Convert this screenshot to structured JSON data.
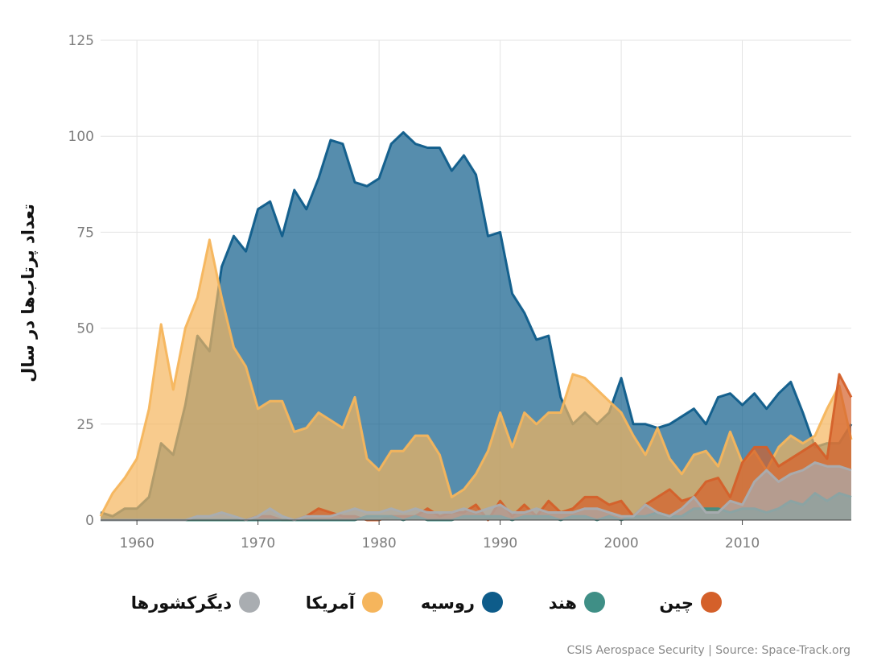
{
  "chart_data": {
    "type": "area",
    "ylabel": "تعداد پرتاب‌ها در سال",
    "xlabel": "",
    "xlim": [
      1957,
      2019
    ],
    "ylim": [
      0,
      125
    ],
    "x_ticks": [
      1960,
      1970,
      1980,
      1990,
      2000,
      2010
    ],
    "y_ticks": [
      0,
      25,
      50,
      75,
      100,
      125
    ],
    "grid": true,
    "legend_position": "bottom",
    "x": [
      1957,
      1958,
      1959,
      1960,
      1961,
      1962,
      1963,
      1964,
      1965,
      1966,
      1967,
      1968,
      1969,
      1970,
      1971,
      1972,
      1973,
      1974,
      1975,
      1976,
      1977,
      1978,
      1979,
      1980,
      1981,
      1982,
      1983,
      1984,
      1985,
      1986,
      1987,
      1988,
      1989,
      1990,
      1991,
      1992,
      1993,
      1994,
      1995,
      1996,
      1997,
      1998,
      1999,
      2000,
      2001,
      2002,
      2003,
      2004,
      2005,
      2006,
      2007,
      2008,
      2009,
      2010,
      2011,
      2012,
      2013,
      2014,
      2015,
      2016,
      2017,
      2018,
      2019
    ],
    "series": [
      {
        "name": "روسیه",
        "color": "#0e5c8a",
        "values": [
          2,
          1,
          3,
          3,
          6,
          20,
          17,
          30,
          48,
          44,
          66,
          74,
          70,
          81,
          83,
          74,
          86,
          81,
          89,
          99,
          98,
          88,
          87,
          89,
          98,
          101,
          98,
          97,
          97,
          91,
          95,
          90,
          74,
          75,
          59,
          54,
          47,
          48,
          32,
          25,
          28,
          25,
          28,
          37,
          25,
          25,
          24,
          25,
          27,
          29,
          25,
          32,
          33,
          30,
          33,
          29,
          33,
          36,
          28,
          19,
          20,
          20,
          25
        ]
      },
      {
        "name": "آمریکا",
        "color": "#f5b55c",
        "values": [
          1,
          7,
          11,
          16,
          29,
          51,
          34,
          50,
          58,
          73,
          58,
          45,
          40,
          29,
          31,
          31,
          23,
          24,
          28,
          26,
          24,
          32,
          16,
          13,
          18,
          18,
          22,
          22,
          17,
          6,
          8,
          12,
          18,
          28,
          19,
          28,
          25,
          28,
          28,
          38,
          37,
          34,
          31,
          28,
          22,
          17,
          24,
          16,
          12,
          17,
          18,
          14,
          23,
          15,
          18,
          13,
          19,
          22,
          20,
          22,
          29,
          35,
          21
        ]
      },
      {
        "name": "چین",
        "color": "#d4602a",
        "values": [
          0,
          0,
          0,
          0,
          0,
          0,
          0,
          0,
          0,
          0,
          0,
          0,
          0,
          1,
          1,
          0,
          0,
          1,
          3,
          2,
          1,
          1,
          0,
          0,
          1,
          1,
          1,
          3,
          1,
          2,
          2,
          4,
          0,
          5,
          1,
          4,
          1,
          5,
          2,
          3,
          6,
          6,
          4,
          5,
          1,
          4,
          6,
          8,
          5,
          6,
          10,
          11,
          6,
          15,
          19,
          19,
          14,
          16,
          18,
          20,
          16,
          38,
          32
        ]
      },
      {
        "name": "هند",
        "color": "#3f8f86",
        "values": [
          0,
          0,
          0,
          0,
          0,
          0,
          0,
          0,
          0,
          0,
          0,
          0,
          0,
          0,
          0,
          0,
          0,
          0,
          0,
          0,
          0,
          0,
          1,
          1,
          1,
          0,
          1,
          0,
          0,
          0,
          1,
          1,
          1,
          1,
          0,
          1,
          1,
          1,
          0,
          1,
          1,
          0,
          1,
          0,
          1,
          1,
          2,
          1,
          1,
          3,
          3,
          3,
          2,
          3,
          3,
          2,
          3,
          5,
          4,
          7,
          5,
          7,
          6
        ]
      },
      {
        "name": "دیگرکشورها",
        "color": "#a9adb1",
        "values": [
          0,
          0,
          0,
          0,
          0,
          0,
          0,
          0,
          1,
          1,
          2,
          1,
          0,
          1,
          3,
          1,
          0,
          1,
          1,
          1,
          2,
          3,
          2,
          2,
          3,
          2,
          3,
          2,
          2,
          2,
          3,
          2,
          3,
          4,
          2,
          2,
          3,
          2,
          2,
          2,
          3,
          3,
          2,
          1,
          1,
          4,
          2,
          1,
          3,
          6,
          2,
          2,
          5,
          4,
          10,
          13,
          10,
          12,
          13,
          15,
          14,
          14,
          13
        ]
      }
    ]
  },
  "legend": {
    "items": [
      {
        "label": "دیگرکشورها",
        "color": "#a9adb1"
      },
      {
        "label": "آمریکا",
        "color": "#f5b55c"
      },
      {
        "label": "روسیه",
        "color": "#0e5c8a"
      },
      {
        "label": "هند",
        "color": "#3f8f86"
      },
      {
        "label": "چین",
        "color": "#d4602a"
      }
    ]
  },
  "source_text": "CSIS Aerospace Security | Source: Space-Track.org"
}
